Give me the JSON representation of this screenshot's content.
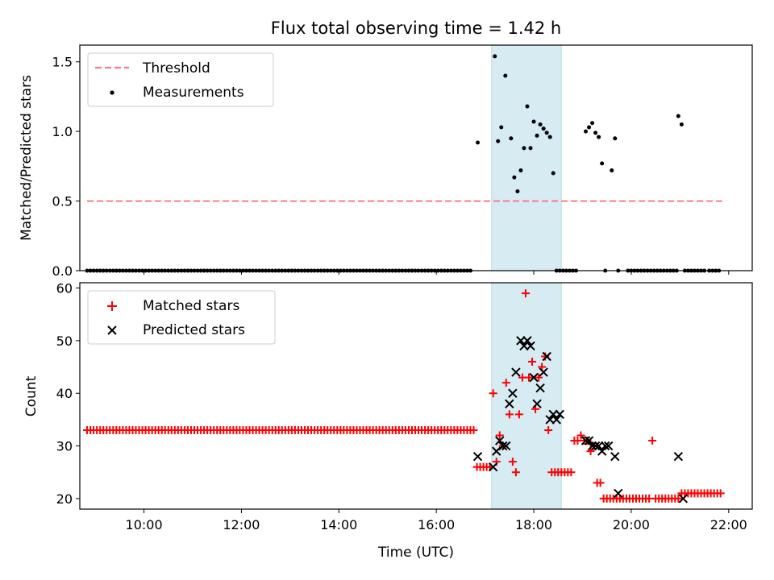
{
  "chart_data": [
    {
      "type": "scatter",
      "title": "Flux total observing time = 1.42 h",
      "ylabel": "Matched/Predicted stars",
      "xlabel": "",
      "xlim": [
        "08:41",
        "22:29"
      ],
      "ylim": [
        0,
        1.62
      ],
      "yticks": [
        0.0,
        0.5,
        1.0,
        1.5
      ],
      "ytick_labels": [
        "0.0",
        "0.5",
        "1.0",
        "1.5"
      ],
      "shaded_span": {
        "x0": "17:08",
        "x1": "18:34",
        "color": "#add8e6"
      },
      "legend_position": "upper-left",
      "series": [
        {
          "name": "Threshold",
          "style": "dashed-line",
          "color": "#f08080",
          "x": [
            "08:50",
            "21:52"
          ],
          "y": [
            0.5,
            0.5
          ]
        },
        {
          "name": "Measurements",
          "style": "dot",
          "color": "#000000",
          "x_zero_start": "08:50",
          "x_zero_end": "16:45",
          "x_zero_step_min": 4,
          "x": [
            "16:51",
            "17:12",
            "17:16",
            "17:20",
            "17:25",
            "17:32",
            "17:36",
            "17:40",
            "17:44",
            "17:48",
            "17:52",
            "17:56",
            "18:00",
            "18:04",
            "18:08",
            "18:12",
            "18:16",
            "18:20",
            "18:24",
            "18:28",
            "18:32",
            "18:36",
            "18:40",
            "18:44",
            "18:48",
            "18:52",
            "19:04",
            "19:08",
            "19:12",
            "19:16",
            "19:20",
            "19:24",
            "19:28",
            "19:36",
            "19:40",
            "19:44",
            "19:56",
            "20:00",
            "20:04",
            "20:08",
            "20:12",
            "20:16",
            "20:20",
            "20:24",
            "20:28",
            "20:32",
            "20:36",
            "20:40",
            "20:44",
            "20:48",
            "20:52",
            "20:56",
            "20:58",
            "21:02",
            "21:06",
            "21:10",
            "21:14",
            "21:18",
            "21:22",
            "21:26",
            "21:30",
            "21:36",
            "21:40",
            "21:44",
            "21:48"
          ],
          "y": [
            0.92,
            1.54,
            0.93,
            1.03,
            1.4,
            0.95,
            0.67,
            0.57,
            0.72,
            0.88,
            1.18,
            0.88,
            1.07,
            0.97,
            1.05,
            1.02,
            0.99,
            0.96,
            0.7,
            0,
            0,
            0,
            0,
            0,
            0,
            0,
            1.0,
            1.03,
            1.06,
            0.99,
            0.96,
            0.77,
            0,
            0.72,
            0.95,
            0,
            0,
            0,
            0,
            0,
            0,
            0,
            0,
            0,
            0,
            0,
            0,
            0,
            0,
            0,
            0,
            0,
            1.11,
            1.05,
            0,
            0,
            0,
            0,
            0,
            0,
            0,
            0,
            0,
            0,
            0
          ]
        }
      ]
    },
    {
      "type": "scatter",
      "title": "",
      "xlabel": "Time (UTC)",
      "ylabel": "Count",
      "xlim": [
        "08:41",
        "22:29"
      ],
      "ylim": [
        18,
        61
      ],
      "yticks": [
        20,
        30,
        40,
        50,
        60
      ],
      "ytick_labels": [
        "20",
        "30",
        "40",
        "50",
        "60"
      ],
      "xticks": [
        "10:00",
        "12:00",
        "14:00",
        "16:00",
        "18:00",
        "20:00",
        "22:00"
      ],
      "shaded_span": {
        "x0": "17:08",
        "x1": "18:34",
        "color": "#add8e6"
      },
      "legend_position": "upper-left",
      "series": [
        {
          "name": "Matched stars",
          "style": "plus",
          "color": "#ff0000",
          "const_run": {
            "x_start": "08:50",
            "x_end": "16:46",
            "step_min": 4,
            "y": 33
          },
          "x": [
            "16:50",
            "16:54",
            "16:58",
            "17:02",
            "17:06",
            "17:10",
            "17:14",
            "17:18",
            "17:22",
            "17:26",
            "17:30",
            "17:34",
            "17:38",
            "17:42",
            "17:46",
            "17:50",
            "17:54",
            "17:58",
            "18:02",
            "18:06",
            "18:10",
            "18:14",
            "18:18",
            "18:22",
            "18:26",
            "18:30",
            "18:34",
            "18:38",
            "18:42",
            "18:46",
            "18:50",
            "18:54",
            "18:58",
            "19:02",
            "19:06",
            "19:10",
            "19:14",
            "19:18",
            "19:22",
            "19:26",
            "19:30",
            "19:34",
            "19:38",
            "19:42",
            "19:46",
            "19:50",
            "19:54",
            "19:58",
            "20:02",
            "20:06",
            "20:10",
            "20:14",
            "20:18",
            "20:22",
            "20:26",
            "20:30",
            "20:34",
            "20:38",
            "20:42",
            "20:46",
            "20:50",
            "20:54",
            "20:58",
            "21:02",
            "21:06",
            "21:10",
            "21:14",
            "21:18",
            "21:22",
            "21:26",
            "21:30",
            "21:34",
            "21:38",
            "21:42",
            "21:46",
            "21:50"
          ],
          "y": [
            26,
            26,
            26,
            26,
            26,
            40,
            27,
            32,
            30,
            42,
            36,
            27,
            25,
            36,
            43,
            59,
            43,
            46,
            37,
            43,
            45,
            47,
            33,
            25,
            25,
            25,
            25,
            25,
            25,
            25,
            31,
            31,
            32,
            31,
            31,
            29,
            30,
            23,
            23,
            20,
            20,
            20,
            20,
            20,
            20,
            20,
            20,
            20,
            20,
            20,
            20,
            20,
            20,
            20,
            31,
            20,
            20,
            20,
            20,
            20,
            20,
            20,
            20,
            21,
            21,
            21,
            21,
            21,
            21,
            21,
            21,
            21,
            21,
            21,
            21,
            21
          ]
        },
        {
          "name": "Predicted stars",
          "style": "x",
          "color": "#000000",
          "x": [
            "16:51",
            "17:10",
            "17:14",
            "17:18",
            "17:22",
            "17:26",
            "17:30",
            "17:34",
            "17:38",
            "17:44",
            "17:48",
            "17:52",
            "17:56",
            "18:00",
            "18:04",
            "18:08",
            "18:12",
            "18:16",
            "18:20",
            "18:24",
            "18:28",
            "18:32",
            "19:04",
            "19:08",
            "19:12",
            "19:16",
            "19:20",
            "19:24",
            "19:28",
            "19:32",
            "19:40",
            "19:44",
            "20:58",
            "21:04"
          ],
          "y": [
            28,
            26,
            29,
            31,
            30,
            30,
            38,
            40,
            44,
            50,
            49,
            50,
            49,
            43,
            38,
            41,
            44,
            47,
            35,
            36,
            35,
            36,
            31,
            31,
            30,
            30,
            30,
            29,
            30,
            30,
            28,
            21,
            28,
            20
          ]
        }
      ]
    }
  ]
}
